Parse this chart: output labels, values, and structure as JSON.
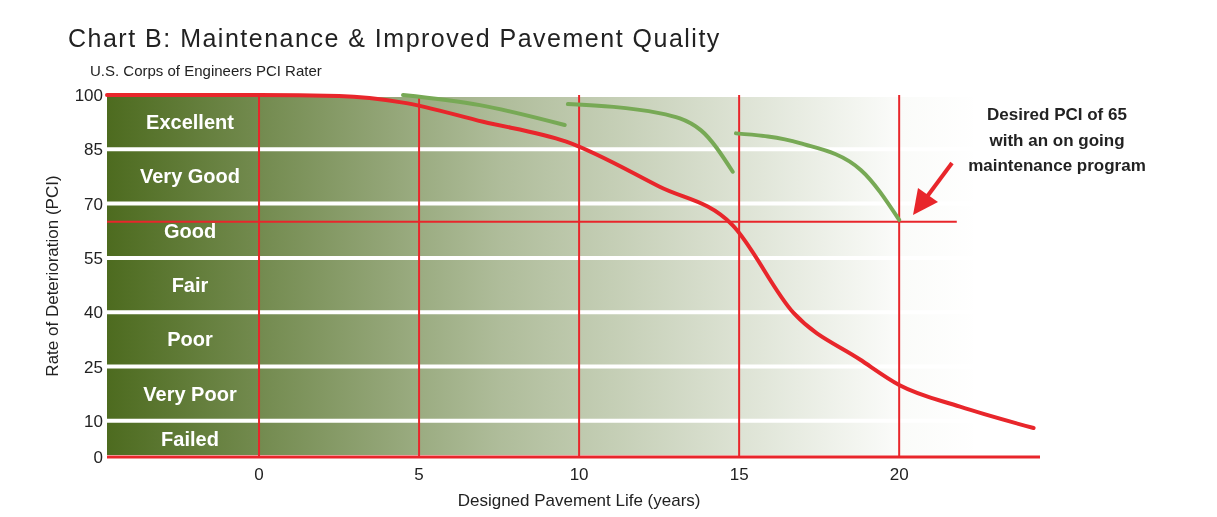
{
  "chart_data": {
    "type": "line",
    "title": "Chart B: Maintenance & Improved Pavement Quality",
    "subtitle": "U.S. Corps of Engineers PCI Rater",
    "xlabel": "Designed Pavement Life (years)",
    "ylabel": "Rate of Deterioration (PCI)",
    "xlim": [
      -4.75,
      24.4
    ],
    "ylim": [
      0,
      100
    ],
    "xticks": [
      0,
      5,
      10,
      15,
      20
    ],
    "yticks": [
      0,
      10,
      25,
      40,
      55,
      70,
      85,
      100
    ],
    "grid": true,
    "marker": "none",
    "line_style": "solid",
    "series": [
      {
        "color": "#e8262b",
        "x": [
          -4.75,
          0,
          2.5,
          4.5,
          7,
          9.6,
          12.5,
          14.8,
          16.7,
          18.8,
          20,
          21.9,
          24.2
        ],
        "values": [
          100,
          100,
          99.7,
          97.9,
          92.6,
          87.1,
          74.7,
          64,
          39.8,
          26.8,
          19.9,
          13.9,
          8
        ]
      },
      {
        "color": "#77a955",
        "x": [
          4.5,
          6.9,
          9.55,
          9.6,
          9.65,
          12.5,
          13.8,
          14.8,
          14.85,
          14.9,
          16.9,
          18.8,
          20
        ],
        "values": [
          100,
          97.2,
          91.7,
          null,
          97.5,
          95,
          90.3,
          78.8,
          null,
          89.4,
          86.7,
          79.3,
          65.5
        ]
      }
    ],
    "bands": [
      {
        "axis": "y",
        "from": 85,
        "to": 100,
        "label": "Excellent",
        "color": "#4d6b1f"
      },
      {
        "axis": "y",
        "from": 70,
        "to": 85,
        "label": "Very Good",
        "color": "#4d6b1f"
      },
      {
        "axis": "y",
        "from": 55,
        "to": 70,
        "label": "Good",
        "color": "#4d6b1f"
      },
      {
        "axis": "y",
        "from": 40,
        "to": 55,
        "label": "Fair",
        "color": "#4d6b1f"
      },
      {
        "axis": "y",
        "from": 25,
        "to": 40,
        "label": "Poor",
        "color": "#4d6b1f"
      },
      {
        "axis": "y",
        "from": 10,
        "to": 25,
        "label": "Very Poor",
        "color": "#4d6b1f"
      },
      {
        "axis": "y",
        "from": 0,
        "to": 10,
        "label": "Failed",
        "color": "#4d6b1f"
      }
    ],
    "ref_lines": [
      {
        "axis": "y",
        "value": 65,
        "color": "#e8262b"
      }
    ],
    "annotations": [
      "Desired PCI of 65 with an on going maintenance program"
    ]
  }
}
